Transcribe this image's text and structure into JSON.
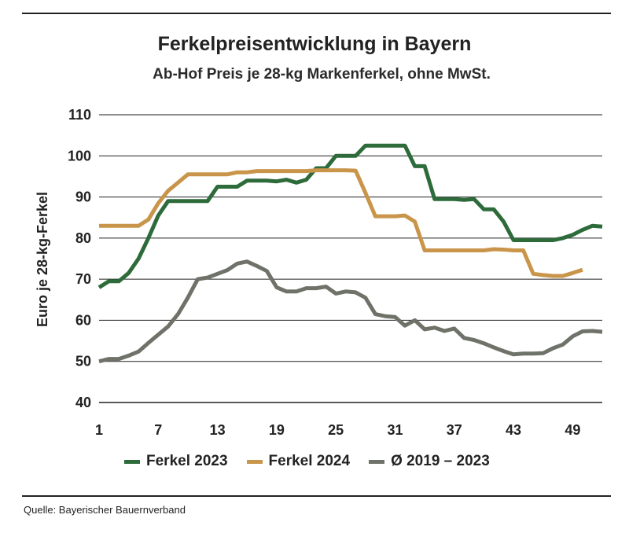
{
  "chart_data": {
    "type": "line",
    "title": "Ferkelpreisentwicklung in Bayern",
    "subtitle": "Ab-Hof Preis je 28-kg Markenferkel, ohne MwSt.",
    "ylabel": "Euro je 28-kg-Ferkel",
    "xlabel": "",
    "xlim": [
      1,
      52
    ],
    "ylim": [
      40,
      110
    ],
    "xticks": [
      1,
      7,
      13,
      19,
      25,
      31,
      37,
      43,
      49
    ],
    "yticks": [
      40,
      50,
      60,
      70,
      80,
      90,
      100,
      110
    ],
    "grid": "horizontal",
    "legend_position": "bottom",
    "series": [
      {
        "name": "Ferkel 2023",
        "color": "#2e6b3a",
        "x": [
          1,
          2,
          3,
          4,
          5,
          6,
          7,
          8,
          9,
          10,
          11,
          12,
          13,
          14,
          15,
          16,
          17,
          18,
          19,
          20,
          21,
          22,
          23,
          24,
          25,
          26,
          27,
          28,
          29,
          30,
          31,
          32,
          33,
          34,
          35,
          36,
          37,
          38,
          39,
          40,
          41,
          42,
          43,
          44,
          45,
          46,
          47,
          48,
          49,
          50,
          51,
          52
        ],
        "y": [
          68,
          69.5,
          69.5,
          71.5,
          75,
          80,
          85.5,
          89,
          89,
          89,
          89,
          89,
          92.5,
          92.5,
          92.5,
          94,
          94,
          94,
          93.8,
          94.2,
          93.5,
          94.2,
          97,
          97,
          100,
          100,
          100,
          102.5,
          102.5,
          102.5,
          102.5,
          102.5,
          97.5,
          97.5,
          89.5,
          89.5,
          89.5,
          89.3,
          89.5,
          87,
          87,
          84,
          79.5,
          79.5,
          79.5,
          79.5,
          79.5,
          80,
          80.8,
          82,
          83,
          82.8
        ]
      },
      {
        "name": "Ferkel 2024",
        "color": "#c9954a",
        "x": [
          1,
          2,
          3,
          4,
          5,
          6,
          7,
          8,
          9,
          10,
          11,
          12,
          13,
          14,
          15,
          16,
          17,
          18,
          19,
          20,
          21,
          22,
          23,
          24,
          25,
          26,
          27,
          28,
          29,
          30,
          31,
          32,
          33,
          34,
          35,
          36,
          37,
          38,
          39,
          40,
          41,
          42,
          43,
          44,
          45,
          46,
          47,
          48,
          49,
          50
        ],
        "y": [
          83,
          83,
          83,
          83,
          83,
          84.5,
          88.5,
          91.5,
          93.5,
          95.5,
          95.5,
          95.5,
          95.5,
          95.5,
          96,
          96,
          96.3,
          96.3,
          96.3,
          96.3,
          96.3,
          96.3,
          96.5,
          96.5,
          96.5,
          96.5,
          96.4,
          91,
          85.3,
          85.3,
          85.3,
          85.5,
          84,
          77,
          77,
          77,
          77,
          77,
          77,
          77,
          77.3,
          77.2,
          77,
          77,
          71.3,
          71,
          70.8,
          70.8,
          71.5,
          72.3
        ]
      },
      {
        "name": "Ø 2019 – 2023",
        "color": "#6f7269",
        "x": [
          1,
          2,
          3,
          4,
          5,
          6,
          7,
          8,
          9,
          10,
          11,
          12,
          13,
          14,
          15,
          16,
          17,
          18,
          19,
          20,
          21,
          22,
          23,
          24,
          25,
          26,
          27,
          28,
          29,
          30,
          31,
          32,
          33,
          34,
          35,
          36,
          37,
          38,
          39,
          40,
          41,
          42,
          43,
          44,
          45,
          46,
          47,
          48,
          49,
          50,
          51,
          52
        ],
        "y": [
          50,
          50.6,
          50.6,
          51.4,
          52.4,
          54.5,
          56.5,
          58.5,
          61.5,
          65.5,
          70,
          70.4,
          71.3,
          72.2,
          73.8,
          74.3,
          73.2,
          72,
          68,
          67,
          67,
          67.8,
          67.8,
          68.2,
          66.5,
          67,
          66.8,
          65.5,
          61.5,
          61,
          60.8,
          58.7,
          60,
          57.8,
          58.2,
          57.4,
          58,
          55.7,
          55.2,
          54.4,
          53.4,
          52.5,
          51.7,
          51.9,
          51.9,
          52,
          53.2,
          54.1,
          56.1,
          57.3,
          57.4,
          57.2
        ]
      }
    ]
  },
  "source": "Quelle: Bayerischer Bauernverband"
}
